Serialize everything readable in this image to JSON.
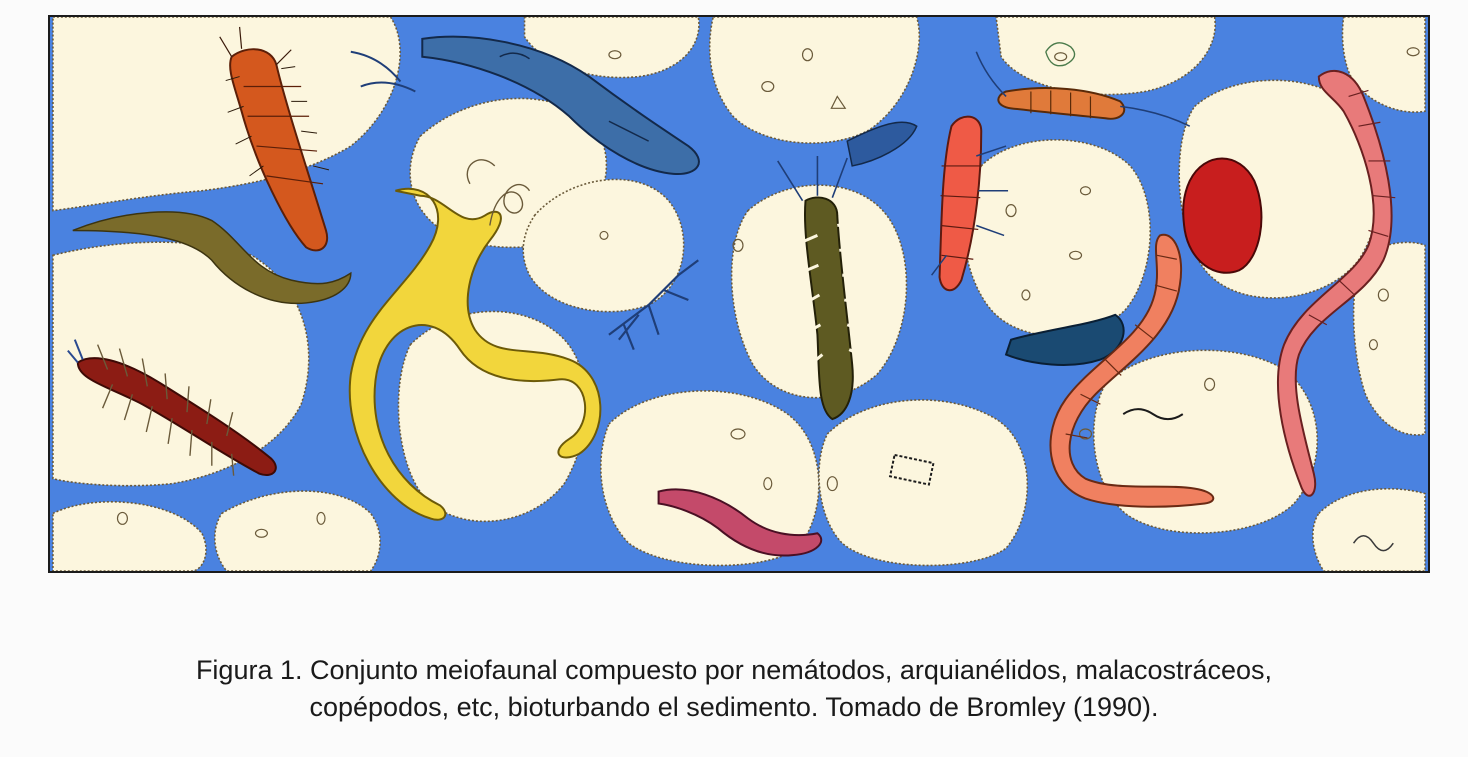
{
  "figure": {
    "colors": {
      "water": "#4a82e0",
      "grain": "#fcf6de",
      "grain_outline": "#6a5a3a",
      "nematode_yellow": "#f2d63c",
      "copepod_orange": "#d4581e",
      "worm_olive": "#7a6b2a",
      "turbellarian_blue": "#3d6ea8",
      "annelid_dark_red": "#8c1c14",
      "polychaete_green": "#5e5a22",
      "mite_red": "#ef5a46",
      "salmon": "#f08060",
      "crimson": "#c81e1e",
      "pink": "#e87a7a",
      "magenta": "#c44a6a",
      "navy": "#1f3e78"
    },
    "organisms": [
      "copepod-orange",
      "worm-olive",
      "turbellarian-blue",
      "nematode-yellow",
      "archiannelid-dark-red",
      "polychaete-olive",
      "mite-red",
      "isopod-orange",
      "worm-navy",
      "worm-salmon",
      "ostracod-crimson",
      "worm-pink",
      "worm-magenta"
    ]
  },
  "caption": {
    "line1": "Figura 1.  Conjunto meiofaunal compuesto por nemátodos, arquianélidos, malacostráceos,",
    "line2": "copépodos, etc, bioturbando el sedimento. Tomado de Bromley (1990)."
  }
}
